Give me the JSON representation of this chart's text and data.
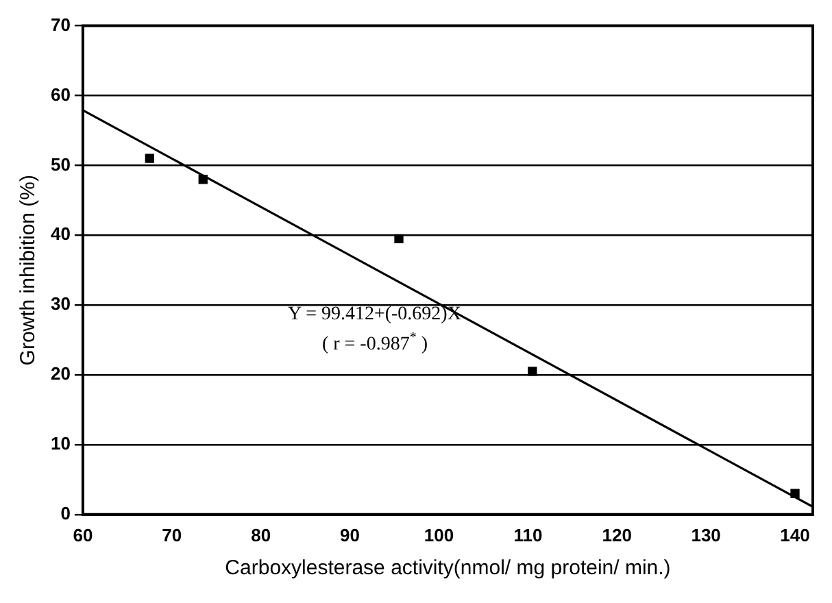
{
  "chart_data": {
    "type": "scatter",
    "xlabel": "Carboxylesterase activity(nmol/ mg protein/ min.)",
    "ylabel": "Growth inhibition (%)",
    "xlim": [
      60,
      142
    ],
    "xticks": [
      60,
      70,
      80,
      90,
      100,
      110,
      120,
      130,
      140
    ],
    "ylim": [
      0,
      70
    ],
    "yticks": [
      0,
      10,
      20,
      30,
      40,
      50,
      60,
      70
    ],
    "grid": "y",
    "marker": "square",
    "series": [
      {
        "color": "#000000",
        "x": [
          67.5,
          73.5,
          95.5,
          110.5,
          140
        ],
        "values": [
          51,
          48,
          39.5,
          20.5,
          3
        ]
      },
      {
        "type": "line",
        "color": "#000000",
        "x": [
          60,
          142
        ],
        "values": [
          57.9,
          1.1
        ],
        "marker": "none"
      }
    ],
    "annotations": [
      "Y = 99.412+(-0.692)X",
      "( r = -0.987$^{*}$ )"
    ]
  }
}
